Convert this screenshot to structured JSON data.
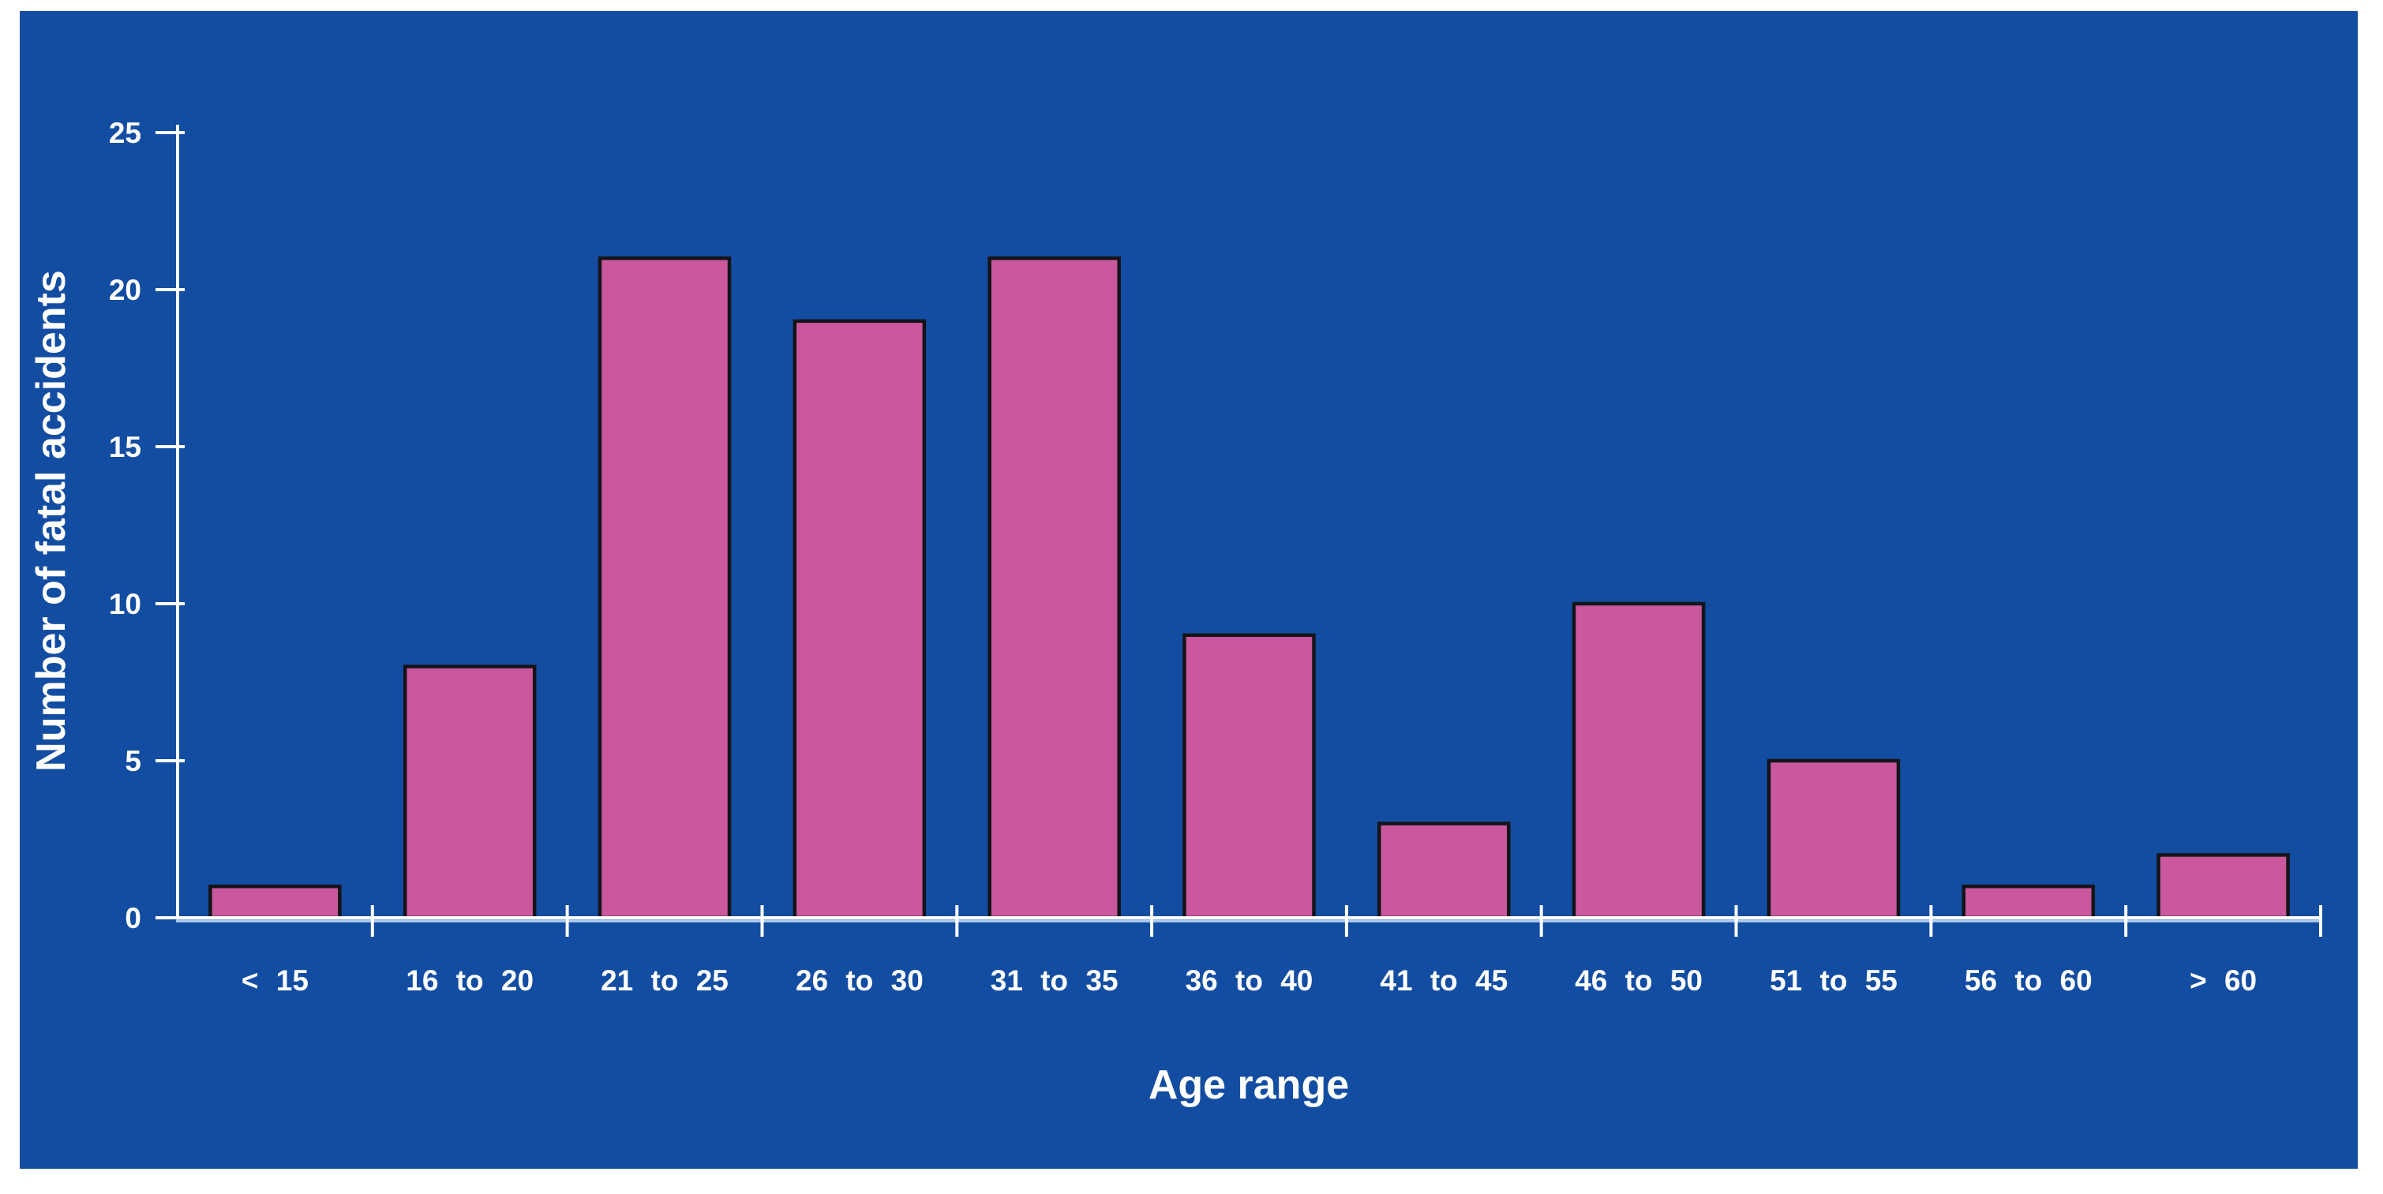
{
  "page": {
    "background": "#ffffff",
    "panel_background": "#134da2"
  },
  "chart_data": {
    "type": "bar",
    "title": "",
    "categories": [
      "< 15",
      "16 to 20",
      "21 to 25",
      "26 to 30",
      "31 to 35",
      "36 to 40",
      "41 to 45",
      "46 to 50",
      "51 to 55",
      "56 to 60",
      "> 60"
    ],
    "values": [
      1,
      8,
      21,
      19,
      21,
      9,
      3,
      10,
      5,
      1,
      2
    ],
    "xlabel": "Age range",
    "ylabel": "Number of fatal accidents",
    "ylim": [
      0,
      25
    ],
    "yticks": [
      0,
      5,
      10,
      15,
      20,
      25
    ],
    "grid": false,
    "legend_position": "none",
    "colors": {
      "bar_fill": "#c9589d",
      "bar_stroke": "#141418",
      "axis_line": "#ffffff",
      "baseline_accent": "#aecdf2",
      "text": "#ffffff"
    }
  }
}
